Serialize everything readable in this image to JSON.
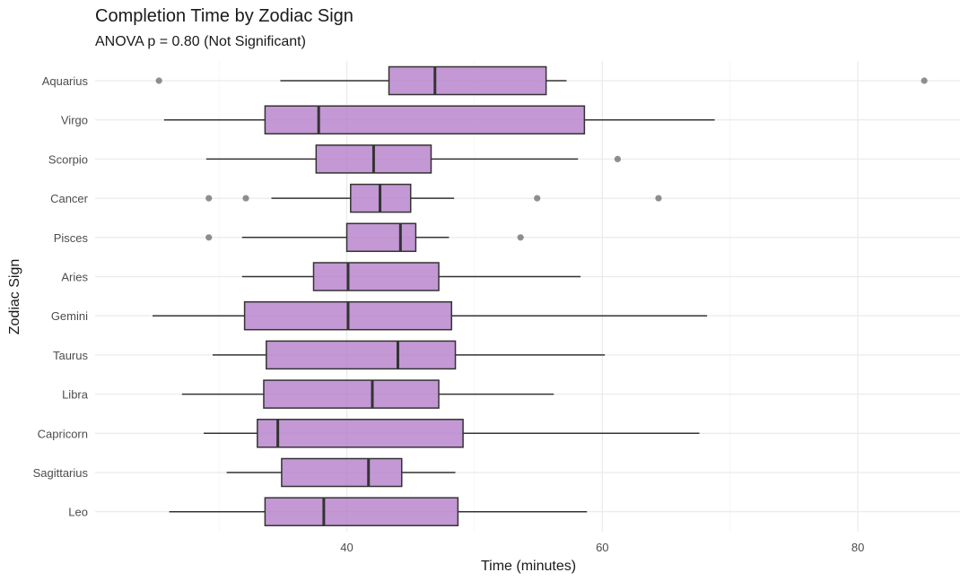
{
  "chart_data": {
    "type": "boxplot",
    "title": "Completion Time by Zodiac Sign",
    "subtitle": "ANOVA p = 0.80 (Not Significant)",
    "xlabel": "Time (minutes)",
    "ylabel": "Zodiac Sign",
    "xlim": [
      20.3,
      88.0
    ],
    "x_ticks": [
      40,
      60,
      80
    ],
    "grid": true,
    "legend": "none",
    "colors": {
      "box_fill": "#b47ec9",
      "box_stroke": "#333333",
      "whisker": "#333333",
      "outlier": "#555555",
      "grid": "#ebebeb"
    },
    "series": [
      {
        "name": "Aquarius",
        "min": 34.8,
        "q1": 43.3,
        "median": 46.9,
        "q3": 55.6,
        "max": 57.2,
        "outliers": [
          25.3,
          85.2
        ]
      },
      {
        "name": "Virgo",
        "min": 25.7,
        "q1": 33.6,
        "median": 37.8,
        "q3": 58.6,
        "max": 68.8,
        "outliers": []
      },
      {
        "name": "Scorpio",
        "min": 29.0,
        "q1": 37.6,
        "median": 42.1,
        "q3": 46.6,
        "max": 58.1,
        "outliers": [
          61.2
        ]
      },
      {
        "name": "Cancer",
        "min": 34.1,
        "q1": 40.3,
        "median": 42.6,
        "q3": 45.0,
        "max": 48.4,
        "outliers": [
          29.2,
          32.1,
          54.9,
          64.4
        ]
      },
      {
        "name": "Pisces",
        "min": 31.8,
        "q1": 40.0,
        "median": 44.2,
        "q3": 45.4,
        "max": 48.0,
        "outliers": [
          29.2,
          53.6
        ]
      },
      {
        "name": "Aries",
        "min": 31.8,
        "q1": 37.4,
        "median": 40.1,
        "q3": 47.2,
        "max": 58.3,
        "outliers": []
      },
      {
        "name": "Gemini",
        "min": 24.8,
        "q1": 32.0,
        "median": 40.1,
        "q3": 48.2,
        "max": 68.2,
        "outliers": []
      },
      {
        "name": "Taurus",
        "min": 29.5,
        "q1": 33.7,
        "median": 44.0,
        "q3": 48.5,
        "max": 60.2,
        "outliers": []
      },
      {
        "name": "Libra",
        "min": 27.1,
        "q1": 33.5,
        "median": 42.0,
        "q3": 47.2,
        "max": 56.2,
        "outliers": []
      },
      {
        "name": "Capricorn",
        "min": 28.8,
        "q1": 33.0,
        "median": 34.6,
        "q3": 49.1,
        "max": 67.6,
        "outliers": []
      },
      {
        "name": "Sagittarius",
        "min": 30.6,
        "q1": 34.9,
        "median": 41.7,
        "q3": 44.3,
        "max": 48.5,
        "outliers": []
      },
      {
        "name": "Leo",
        "min": 26.1,
        "q1": 33.6,
        "median": 38.2,
        "q3": 48.7,
        "max": 58.8,
        "outliers": []
      }
    ]
  }
}
